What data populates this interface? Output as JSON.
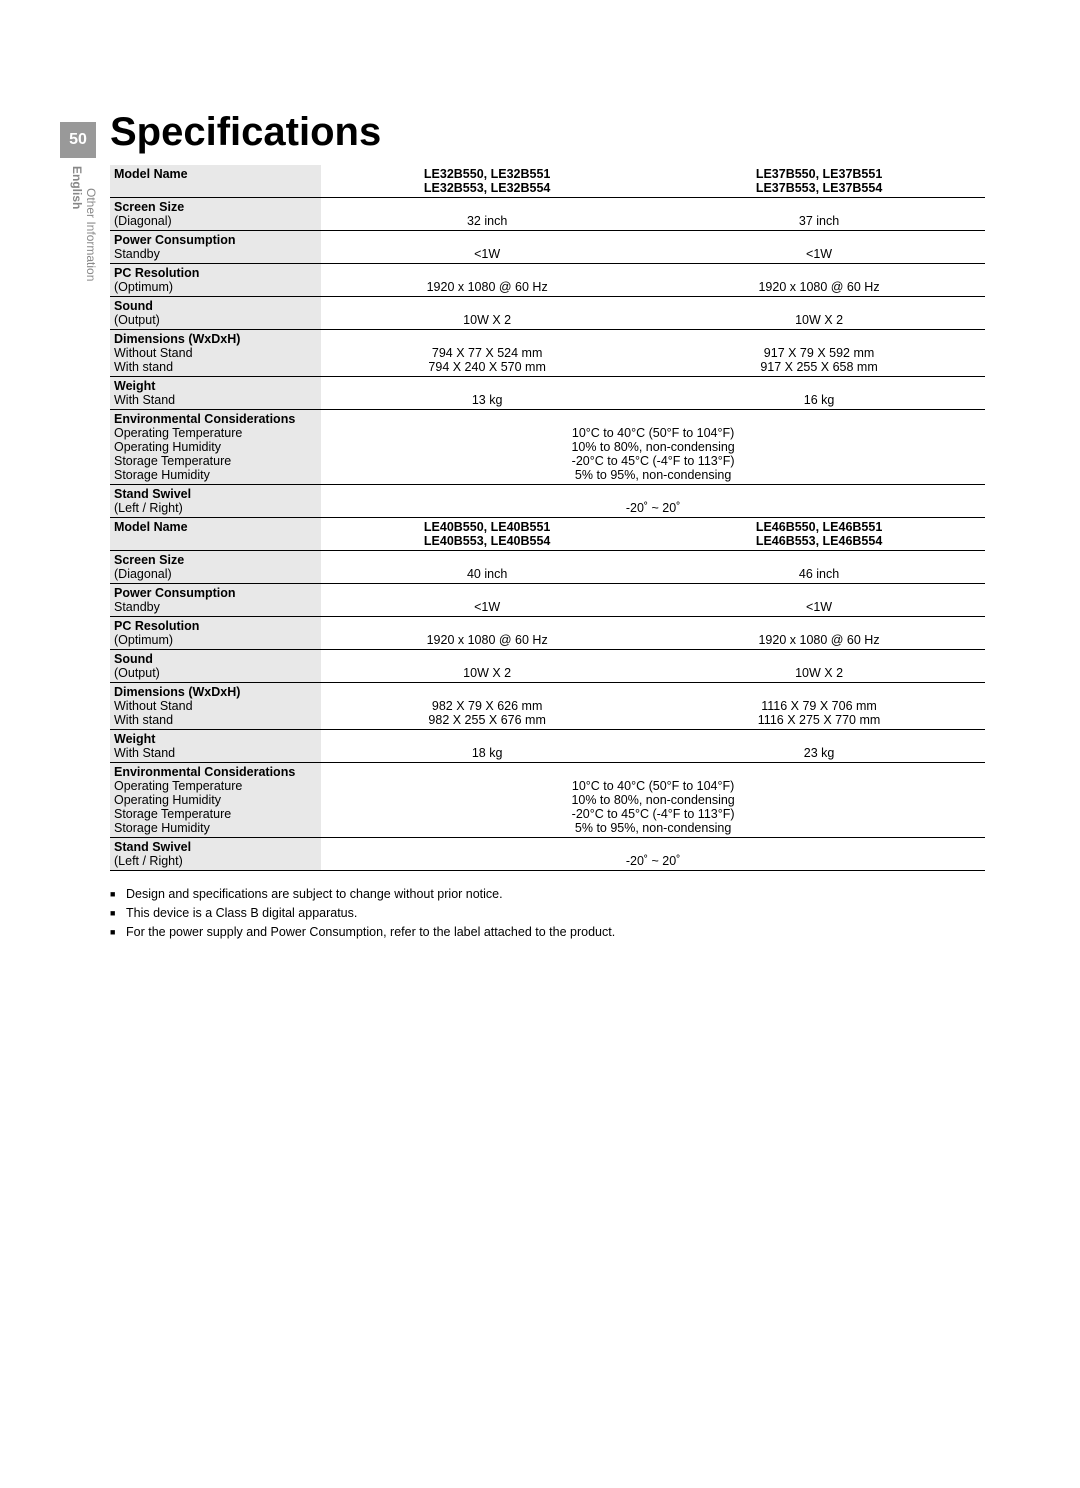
{
  "page_number": "50",
  "language": "English",
  "section": "Other Information",
  "title": "Specifications",
  "tables": [
    {
      "model_header": "Model Name",
      "col1_line1": "LE32B550, LE32B551",
      "col1_line2": "LE32B553, LE32B554",
      "col2_line1": "LE37B550, LE37B551",
      "col2_line2": "LE37B553, LE37B554",
      "rows": [
        {
          "label": "Screen Size",
          "sub": "(Diagonal)",
          "v1": "32 inch",
          "v2": "37  inch"
        },
        {
          "label": "Power Consumption",
          "sub": "Standby",
          "v1": "<1W",
          "v2": "<1W"
        },
        {
          "label": "PC Resolution",
          "sub": "(Optimum)",
          "v1": "1920 x 1080 @ 60 Hz",
          "v2": "1920 x 1080 @ 60 Hz"
        },
        {
          "label": "Sound",
          "sub": "(Output)",
          "v1": "10W X 2",
          "v2": "10W X 2"
        },
        {
          "label": "Dimensions (WxDxH)",
          "sub1": "Without Stand",
          "sub2": "With stand",
          "v1a": "794 X 77 X 524 mm",
          "v1b": "794 X 240 X 570 mm",
          "v2a": "917 X 79 X 592 mm",
          "v2b": "917 X 255 X 658 mm"
        },
        {
          "label": "Weight",
          "sub": "With Stand",
          "v1": "13 kg",
          "v2": "16 kg"
        },
        {
          "label": "Environmental Considerations",
          "sub1": "Operating Temperature",
          "sub2": "Operating Humidity",
          "sub3": "Storage Temperature",
          "sub4": "Storage Humidity",
          "m1": "10°C to 40°C (50°F to 104°F)",
          "m2": "10% to 80%, non-condensing",
          "m3": "-20°C to 45°C (-4°F to 113°F)",
          "m4": "5% to 95%, non-condensing"
        },
        {
          "label": "Stand Swivel",
          "sub": "(Left / Right)",
          "merged": "-20˚ ~ 20˚"
        }
      ]
    },
    {
      "model_header": "Model Name",
      "col1_line1": "LE40B550, LE40B551",
      "col1_line2": "LE40B553, LE40B554",
      "col2_line1": "LE46B550, LE46B551",
      "col2_line2": "LE46B553, LE46B554",
      "rows": [
        {
          "label": "Screen Size",
          "sub": "(Diagonal)",
          "v1": "40 inch",
          "v2": "46 inch"
        },
        {
          "label": "Power Consumption",
          "sub": "Standby",
          "v1": "<1W",
          "v2": "<1W"
        },
        {
          "label": "PC Resolution",
          "sub": "(Optimum)",
          "v1": "1920 x 1080 @ 60 Hz",
          "v2": "1920 x 1080 @ 60 Hz"
        },
        {
          "label": "Sound",
          "sub": "(Output)",
          "v1": "10W X 2",
          "v2": "10W X 2"
        },
        {
          "label": "Dimensions (WxDxH)",
          "sub1": "Without Stand",
          "sub2": "With stand",
          "v1a": "982 X 79 X 626 mm",
          "v1b": "982 X 255 X 676 mm",
          "v2a": "1116 X 79 X 706 mm",
          "v2b": "1116 X 275 X 770 mm"
        },
        {
          "label": "Weight",
          "sub": "With Stand",
          "v1": "18 kg",
          "v2": "23 kg"
        },
        {
          "label": "Environmental Considerations",
          "sub1": "Operating Temperature",
          "sub2": "Operating Humidity",
          "sub3": "Storage Temperature",
          "sub4": "Storage Humidity",
          "m1": "10°C to 40°C (50°F to 104°F)",
          "m2": "10% to 80%, non-condensing",
          "m3": "-20°C to 45°C (-4°F to 113°F)",
          "m4": "5% to 95%, non-condensing"
        },
        {
          "label": "Stand Swivel",
          "sub": "(Left / Right)",
          "merged": "-20˚ ~ 20˚"
        }
      ]
    }
  ],
  "notes": [
    "Design and specifications are subject to change without prior notice.",
    "This device is a Class B digital apparatus.",
    "For the power supply and Power Consumption, refer to the label attached to the product."
  ]
}
